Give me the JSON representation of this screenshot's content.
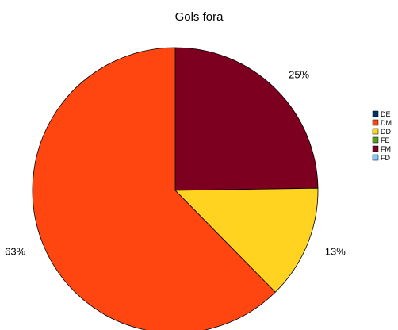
{
  "chart_data": {
    "type": "pie",
    "title": "Gols fora",
    "categories": [
      "DE",
      "DM",
      "DD",
      "FE",
      "FM",
      "FD"
    ],
    "values": [
      0,
      63,
      13,
      0,
      25,
      0
    ],
    "value_labels": [
      "",
      "63%",
      "13%",
      "",
      "25%",
      ""
    ],
    "colors": [
      "#003366",
      "#FF4610",
      "#FFD320",
      "#579D1C",
      "#7E0021",
      "#83CAFF"
    ],
    "slice_order": [
      "FM",
      "DD",
      "DM"
    ],
    "start_angle_deg": 0,
    "direction": "clockwise",
    "legend_position": "right"
  }
}
